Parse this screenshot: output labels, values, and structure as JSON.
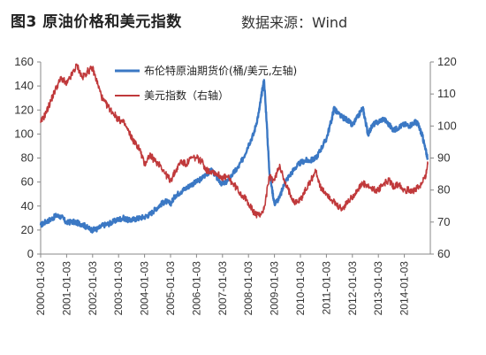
{
  "header": {
    "title": "图3 原油价格和美元指数",
    "source": "数据来源：Wind"
  },
  "colors": {
    "oil": "#3b78c4",
    "usd": "#c0393b",
    "axis": "#888888"
  },
  "chart_data": {
    "type": "line",
    "title": "图3 原油价格和美元指数",
    "x_tick_labels": [
      "2000-01-03",
      "2001-01-03",
      "2002-01-03",
      "2003-01-03",
      "2004-01-03",
      "2005-01-03",
      "2006-01-03",
      "2007-01-03",
      "2008-01-03",
      "2009-01-03",
      "2010-01-03",
      "2011-01-03",
      "2012-01-03",
      "2013-01-03",
      "2014-01-03"
    ],
    "y_left": {
      "min": 0,
      "max": 160,
      "ticks": [
        0,
        20,
        40,
        60,
        80,
        100,
        120,
        140,
        160
      ]
    },
    "y_right": {
      "min": 60,
      "max": 120,
      "ticks": [
        60,
        70,
        80,
        90,
        100,
        110,
        120
      ]
    },
    "legend_placement": "top-center",
    "grid": false,
    "series": [
      {
        "name": "布伦特原油期货价(桶/美元,左轴)",
        "axis": "left",
        "x": [
          2000.0,
          2000.2,
          2000.4,
          2000.6,
          2000.8,
          2001.0,
          2001.2,
          2001.4,
          2001.6,
          2001.8,
          2002.0,
          2002.2,
          2002.4,
          2002.6,
          2002.8,
          2003.0,
          2003.2,
          2003.4,
          2003.6,
          2003.8,
          2004.0,
          2004.2,
          2004.4,
          2004.6,
          2004.8,
          2005.0,
          2005.2,
          2005.4,
          2005.6,
          2005.8,
          2006.0,
          2006.2,
          2006.4,
          2006.6,
          2006.8,
          2007.0,
          2007.2,
          2007.4,
          2007.6,
          2007.8,
          2008.0,
          2008.2,
          2008.4,
          2008.5,
          2008.6,
          2008.7,
          2008.8,
          2008.9,
          2009.0,
          2009.2,
          2009.4,
          2009.6,
          2009.8,
          2010.0,
          2010.2,
          2010.4,
          2010.6,
          2010.8,
          2011.0,
          2011.2,
          2011.3,
          2011.4,
          2011.6,
          2011.8,
          2012.0,
          2012.2,
          2012.4,
          2012.5,
          2012.6,
          2012.8,
          2013.0,
          2013.2,
          2013.4,
          2013.6,
          2013.8,
          2014.0,
          2014.2,
          2014.4,
          2014.5,
          2014.6,
          2014.7,
          2014.8,
          2014.9
        ],
        "values": [
          24,
          27,
          29,
          32,
          31,
          26,
          27,
          26,
          25,
          22,
          20,
          21,
          24,
          25,
          27,
          29,
          30,
          28,
          29,
          30,
          31,
          33,
          37,
          41,
          44,
          42,
          49,
          52,
          55,
          58,
          60,
          63,
          67,
          70,
          63,
          58,
          61,
          67,
          72,
          80,
          91,
          100,
          118,
          132,
          145,
          110,
          70,
          55,
          42,
          47,
          60,
          66,
          72,
          76,
          78,
          78,
          80,
          88,
          96,
          112,
          122,
          118,
          114,
          112,
          107,
          114,
          122,
          111,
          100,
          108,
          110,
          113,
          108,
          103,
          106,
          108,
          107,
          110,
          109,
          104,
          98,
          88,
          80
        ]
      },
      {
        "name": "美元指数（右轴）",
        "axis": "right",
        "x": [
          2000.0,
          2000.2,
          2000.4,
          2000.6,
          2000.8,
          2001.0,
          2001.2,
          2001.4,
          2001.6,
          2001.8,
          2002.0,
          2002.2,
          2002.4,
          2002.6,
          2002.8,
          2003.0,
          2003.2,
          2003.4,
          2003.6,
          2003.8,
          2004.0,
          2004.2,
          2004.4,
          2004.6,
          2004.8,
          2005.0,
          2005.2,
          2005.4,
          2005.6,
          2005.8,
          2006.0,
          2006.2,
          2006.4,
          2006.6,
          2006.8,
          2007.0,
          2007.2,
          2007.4,
          2007.6,
          2007.8,
          2008.0,
          2008.2,
          2008.4,
          2008.6,
          2008.8,
          2009.0,
          2009.2,
          2009.4,
          2009.6,
          2009.8,
          2010.0,
          2010.2,
          2010.4,
          2010.6,
          2010.8,
          2011.0,
          2011.2,
          2011.4,
          2011.6,
          2011.8,
          2012.0,
          2012.2,
          2012.4,
          2012.6,
          2012.8,
          2013.0,
          2013.2,
          2013.4,
          2013.6,
          2013.8,
          2014.0,
          2014.2,
          2014.4,
          2014.6,
          2014.8,
          2014.9
        ],
        "values": [
          101,
          104,
          108,
          112,
          115,
          113,
          116,
          119,
          115,
          117,
          118,
          113,
          108,
          106,
          104,
          102,
          101,
          98,
          95,
          93,
          88,
          91,
          89,
          88,
          85,
          83,
          86,
          89,
          88,
          90,
          90,
          89,
          86,
          86,
          85,
          84,
          84,
          82,
          80,
          78,
          76,
          73,
          72,
          74,
          84,
          83,
          88,
          82,
          79,
          76,
          77,
          80,
          83,
          86,
          80,
          79,
          77,
          75,
          74,
          76,
          78,
          80,
          82,
          81,
          80,
          80,
          82,
          83,
          81,
          82,
          80,
          80,
          80,
          81,
          84,
          88
        ]
      }
    ]
  }
}
